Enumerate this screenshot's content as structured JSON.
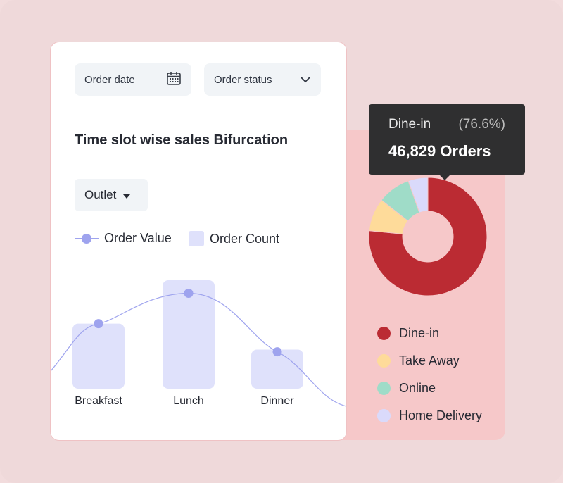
{
  "filters": {
    "order_date": "Order date",
    "order_status": "Order status"
  },
  "title": "Time slot wise sales Bifurcation",
  "outlet_label": "Outlet",
  "legend": {
    "order_value": "Order Value",
    "order_count": "Order Count"
  },
  "chart_data": [
    {
      "type": "bar",
      "categories": [
        "Breakfast",
        "Lunch",
        "Dinner"
      ],
      "series": [
        {
          "name": "Order Count",
          "values": [
            0.6,
            1.0,
            0.36
          ]
        },
        {
          "name": "Order Value",
          "values": [
            0.6,
            0.88,
            0.34
          ]
        }
      ],
      "colors": {
        "bar": "#dfe1fb",
        "line": "#9ea3ee"
      }
    },
    {
      "type": "pie",
      "categories": [
        "Dine-in",
        "Take Away",
        "Online",
        "Home Delivery"
      ],
      "values": [
        76.6,
        9.0,
        9.0,
        5.4
      ],
      "colors": [
        "#bb2b33",
        "#fedb9a",
        "#9fdcc8",
        "#dadafb"
      ]
    }
  ],
  "tooltip": {
    "label": "Dine-in",
    "percent": "(76.6%)",
    "orders": "46,829 Orders"
  },
  "colors": {
    "background": "#efd9da",
    "panel": "#f6c8c9",
    "filter_bg": "#f1f4f7"
  }
}
